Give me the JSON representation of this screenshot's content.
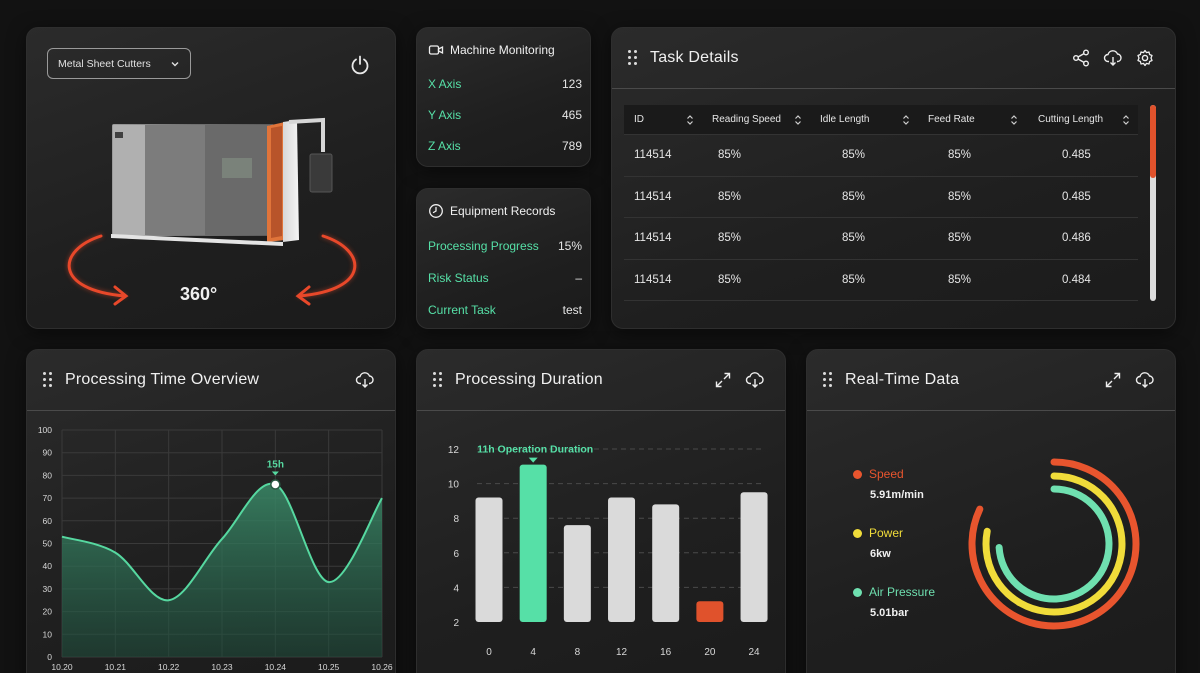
{
  "machine": {
    "selector_value": "Metal Sheet Cutters",
    "rotation_label": "360°"
  },
  "monitoring": {
    "title": "Machine Monitoring",
    "rows": [
      {
        "label": "X Axis",
        "value": "123"
      },
      {
        "label": "Y Axis",
        "value": "465"
      },
      {
        "label": "Z Axis",
        "value": "789"
      }
    ]
  },
  "records": {
    "title": "Equipment Records",
    "rows": [
      {
        "label": "Processing Progress",
        "value": "15%"
      },
      {
        "label": "Risk Status",
        "value": "–"
      },
      {
        "label": "Current Task",
        "value": "test"
      }
    ]
  },
  "task": {
    "title": "Task Details",
    "columns": [
      "ID",
      "Reading Speed",
      "Idle Length",
      "Feed Rate",
      "Cutting Length"
    ],
    "rows": [
      [
        "114514",
        "85%",
        "85%",
        "85%",
        "0.485"
      ],
      [
        "114514",
        "85%",
        "85%",
        "85%",
        "0.485"
      ],
      [
        "114514",
        "85%",
        "85%",
        "85%",
        "0.486"
      ],
      [
        "114514",
        "85%",
        "85%",
        "85%",
        "0.484"
      ]
    ],
    "scroll_fraction": 0.37
  },
  "time_overview": {
    "title": "Processing Time Overview",
    "chart_data": {
      "type": "area",
      "x": [
        "10.20",
        "10.21",
        "10.22",
        "10.23",
        "10.24",
        "10.25",
        "10.26"
      ],
      "ylim": [
        0,
        100
      ],
      "yticks": [
        0,
        10,
        20,
        30,
        40,
        50,
        60,
        70,
        80,
        90,
        100
      ],
      "values": [
        53,
        46,
        25,
        52,
        76,
        33,
        70
      ],
      "highlight": {
        "x": "10.24",
        "value": 76,
        "label": "15h"
      },
      "color": "#56d8a0"
    }
  },
  "duration": {
    "title": "Processing Duration",
    "chart_data": {
      "type": "bar",
      "categories": [
        "0",
        "4",
        "8",
        "12",
        "16",
        "20",
        "24"
      ],
      "values": [
        9.2,
        11.1,
        7.6,
        9.2,
        8.8,
        3.2,
        9.5
      ],
      "ylim": [
        2,
        12
      ],
      "yticks": [
        2,
        4,
        6,
        8,
        10,
        12
      ],
      "highlight_index": 1,
      "alert_index": 5,
      "annotation": "11h Operation Duration",
      "colors": {
        "default": "#dadada",
        "highlight": "#56e0a7",
        "alert": "#e0522c"
      }
    }
  },
  "realtime": {
    "title": "Real-Time Data",
    "items": [
      {
        "name": "Speed",
        "value": "5.91m/min",
        "color": "#e8552e",
        "fraction": 0.82
      },
      {
        "name": "Power",
        "value": "6kw",
        "color": "#f0dc3a",
        "fraction": 0.78
      },
      {
        "name": "Air Pressure",
        "value": "5.01bar",
        "color": "#6fe0b0",
        "fraction": 0.74
      }
    ]
  }
}
